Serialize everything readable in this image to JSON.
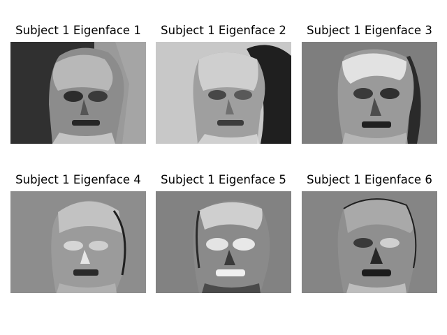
{
  "panels": [
    {
      "title": "Subject 1 Eigenface 1",
      "background": "#7a7a7a",
      "variant": 1
    },
    {
      "title": "Subject 1 Eigenface 2",
      "background": "#c4c4c4",
      "variant": 2
    },
    {
      "title": "Subject 1 Eigenface 3",
      "background": "#7e7e7e",
      "variant": 3
    },
    {
      "title": "Subject 1 Eigenface 4",
      "background": "#8d8d8d",
      "variant": 4
    },
    {
      "title": "Subject 1 Eigenface 5",
      "background": "#828282",
      "variant": 5
    },
    {
      "title": "Subject 1 Eigenface 6",
      "background": "#858585",
      "variant": 6
    }
  ]
}
